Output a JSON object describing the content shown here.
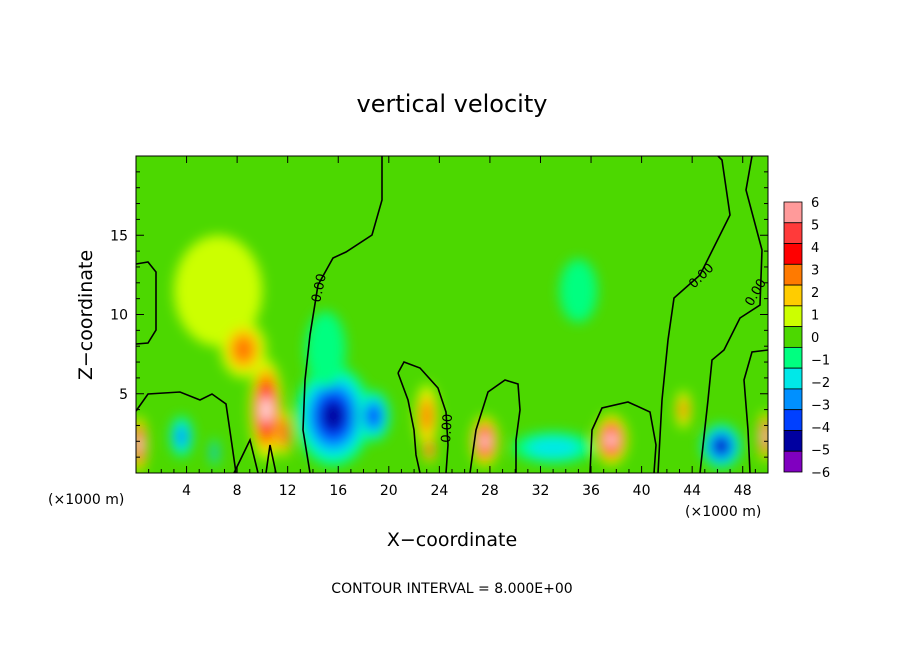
{
  "chart_data": {
    "type": "heatmap",
    "title": "vertical velocity",
    "xlabel": "X−coordinate",
    "ylabel": "Z−coordinate",
    "x_unit_left": "(×1000 m)",
    "x_unit_right": "(×1000 m)",
    "footer": "CONTOUR INTERVAL = 8.000E+00",
    "xlim": [
      0,
      50
    ],
    "ylim": [
      0,
      20
    ],
    "xticks": [
      4,
      8,
      12,
      16,
      20,
      24,
      28,
      32,
      36,
      40,
      44,
      48
    ],
    "yticks": [
      5,
      10,
      15
    ],
    "colorbar": {
      "levels": [
        "6",
        "5",
        "4",
        "3",
        "2",
        "1",
        "0",
        "−1",
        "−2",
        "−3",
        "−4",
        "−5",
        "−6"
      ],
      "values": [
        6,
        5,
        4,
        3,
        2,
        1,
        0,
        -1,
        -2,
        -3,
        -4,
        -5,
        -6
      ],
      "colors": [
        "#ff9a9a",
        "#ff3a3a",
        "#ff0000",
        "#ff7a00",
        "#ffcc00",
        "#ccff00",
        "#4cd800",
        "#00ff80",
        "#00e8e8",
        "#0090ff",
        "#0040ff",
        "#0000a0",
        "#8000c0"
      ]
    },
    "background_color": "#4cd800",
    "contour_label": "0.00",
    "features": [
      {
        "x": 0.2,
        "z": 1.8,
        "value": 6,
        "rx": 0.7,
        "rz": 1.8
      },
      {
        "x": 3.6,
        "z": 2.3,
        "value": -3,
        "rx": 0.9,
        "rz": 1.3
      },
      {
        "x": 6.2,
        "z": 1.3,
        "value": -3,
        "rx": 0.3,
        "rz": 0.9
      },
      {
        "x": 6.5,
        "z": 11.5,
        "value": 1.2,
        "rx": 3.5,
        "rz": 3.5
      },
      {
        "x": 8.5,
        "z": 7.8,
        "value": 2.8,
        "rx": 1.8,
        "rz": 1.8
      },
      {
        "x": 10.3,
        "z": 4.0,
        "value": 6,
        "rx": 1.3,
        "rz": 3.2
      },
      {
        "x": 11.7,
        "z": 2.5,
        "value": 5,
        "rx": 0.6,
        "rz": 1.5
      },
      {
        "x": 15.6,
        "z": 3.6,
        "value": -5,
        "rx": 3.0,
        "rz": 3.2
      },
      {
        "x": 18.8,
        "z": 3.6,
        "value": -4,
        "rx": 1.3,
        "rz": 1.6
      },
      {
        "x": 15.0,
        "z": 7.8,
        "value": -1.5,
        "rx": 1.6,
        "rz": 2.4
      },
      {
        "x": 23.0,
        "z": 3.6,
        "value": 2.8,
        "rx": 0.9,
        "rz": 2.0
      },
      {
        "x": 23.2,
        "z": 1.5,
        "value": 4.5,
        "rx": 0.5,
        "rz": 0.9
      },
      {
        "x": 27.6,
        "z": 2.0,
        "value": 6,
        "rx": 1.1,
        "rz": 1.6
      },
      {
        "x": 33.0,
        "z": 1.6,
        "value": -2.5,
        "rx": 3.2,
        "rz": 1.0
      },
      {
        "x": 37.6,
        "z": 2.1,
        "value": 6,
        "rx": 1.3,
        "rz": 1.6
      },
      {
        "x": 35.0,
        "z": 11.5,
        "value": -1,
        "rx": 1.5,
        "rz": 2.0
      },
      {
        "x": 43.3,
        "z": 4.0,
        "value": 3,
        "rx": 0.6,
        "rz": 1.2
      },
      {
        "x": 46.3,
        "z": 1.7,
        "value": -5,
        "rx": 1.6,
        "rz": 1.4
      },
      {
        "x": 49.8,
        "z": 2.3,
        "value": 6,
        "rx": 0.6,
        "rz": 1.6
      }
    ]
  }
}
